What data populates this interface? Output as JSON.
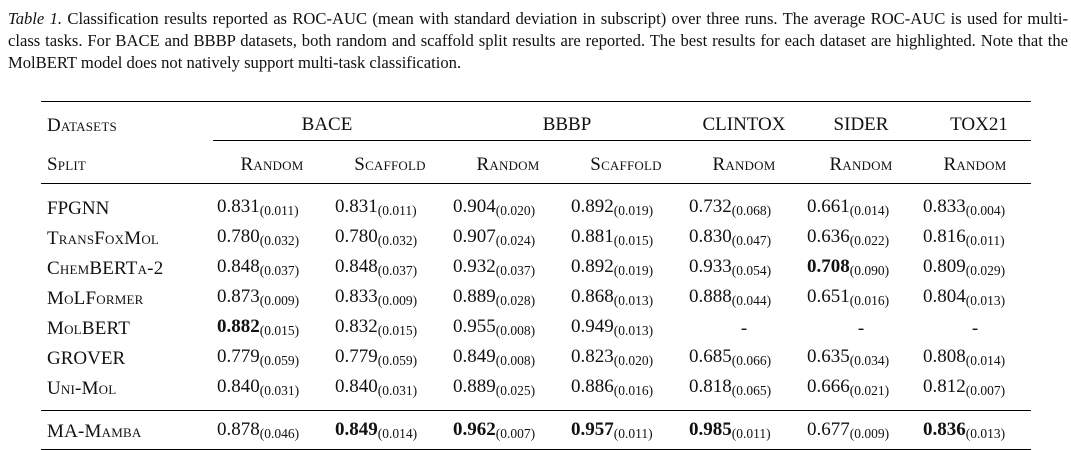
{
  "caption": {
    "label": "Table 1.",
    "text": " Classification results reported as ROC-AUC (mean with standard deviation in subscript) over three runs. The average ROC-AUC is used for multi-class tasks. For BACE and BBBP datasets, both random and scaffold split results are reported. The best results for each dataset are highlighted. Note that the MolBERT model does not natively support multi-task classification."
  },
  "header": {
    "datasets_label": "Datasets",
    "split_label": "Split",
    "groups": [
      "BACE",
      "BBBP",
      "CLINTOX",
      "SIDER",
      "TOX21"
    ],
    "splits": [
      "Random",
      "Scaffold",
      "Random",
      "Scaffold",
      "Random",
      "Random",
      "Random"
    ]
  },
  "rows": [
    {
      "model": "FPGNN",
      "cells": [
        {
          "m": "0.831",
          "s": "(0.011)"
        },
        {
          "m": "0.831",
          "s": "(0.011)"
        },
        {
          "m": "0.904",
          "s": "(0.020)"
        },
        {
          "m": "0.892",
          "s": "(0.019)"
        },
        {
          "m": "0.732",
          "s": "(0.068)"
        },
        {
          "m": "0.661",
          "s": "(0.014)"
        },
        {
          "m": "0.833",
          "s": "(0.004)"
        }
      ]
    },
    {
      "model": "TransFoxMol",
      "cells": [
        {
          "m": "0.780",
          "s": "(0.032)"
        },
        {
          "m": "0.780",
          "s": "(0.032)"
        },
        {
          "m": "0.907",
          "s": "(0.024)"
        },
        {
          "m": "0.881",
          "s": "(0.015)"
        },
        {
          "m": "0.830",
          "s": "(0.047)"
        },
        {
          "m": "0.636",
          "s": "(0.022)"
        },
        {
          "m": "0.816",
          "s": "(0.011)"
        }
      ]
    },
    {
      "model": "ChemBERTa-2",
      "cells": [
        {
          "m": "0.848",
          "s": "(0.037)"
        },
        {
          "m": "0.848",
          "s": "(0.037)"
        },
        {
          "m": "0.932",
          "s": "(0.037)"
        },
        {
          "m": "0.892",
          "s": "(0.019)"
        },
        {
          "m": "0.933",
          "s": "(0.054)"
        },
        {
          "m": "0.708",
          "s": "(0.090)",
          "bold": true
        },
        {
          "m": "0.809",
          "s": "(0.029)"
        }
      ]
    },
    {
      "model": "MoLFormer",
      "cells": [
        {
          "m": "0.873",
          "s": "(0.009)"
        },
        {
          "m": "0.833",
          "s": "(0.009)"
        },
        {
          "m": "0.889",
          "s": "(0.028)"
        },
        {
          "m": "0.868",
          "s": "(0.013)"
        },
        {
          "m": "0.888",
          "s": "(0.044)"
        },
        {
          "m": "0.651",
          "s": "(0.016)"
        },
        {
          "m": "0.804",
          "s": "(0.013)"
        }
      ]
    },
    {
      "model": "MolBERT",
      "cells": [
        {
          "m": "0.882",
          "s": "(0.015)",
          "bold": true
        },
        {
          "m": "0.832",
          "s": "(0.015)"
        },
        {
          "m": "0.955",
          "s": "(0.008)"
        },
        {
          "m": "0.949",
          "s": "(0.013)"
        },
        {
          "dash": "-"
        },
        {
          "dash": "-"
        },
        {
          "dash": "-"
        }
      ]
    },
    {
      "model": "GROVER",
      "cells": [
        {
          "m": "0.779",
          "s": "(0.059)"
        },
        {
          "m": "0.779",
          "s": "(0.059)"
        },
        {
          "m": "0.849",
          "s": "(0.008)"
        },
        {
          "m": "0.823",
          "s": "(0.020)"
        },
        {
          "m": "0.685",
          "s": "(0.066)"
        },
        {
          "m": "0.635",
          "s": "(0.034)"
        },
        {
          "m": "0.808",
          "s": "(0.014)"
        }
      ]
    },
    {
      "model": "Uni-Mol",
      "cells": [
        {
          "m": "0.840",
          "s": "(0.031)"
        },
        {
          "m": "0.840",
          "s": "(0.031)"
        },
        {
          "m": "0.889",
          "s": "(0.025)"
        },
        {
          "m": "0.886",
          "s": "(0.016)"
        },
        {
          "m": "0.818",
          "s": "(0.065)"
        },
        {
          "m": "0.666",
          "s": "(0.021)"
        },
        {
          "m": "0.812",
          "s": "(0.007)"
        }
      ]
    }
  ],
  "ours": {
    "model": "MA-Mamba",
    "cells": [
      {
        "m": "0.878",
        "s": "(0.046)"
      },
      {
        "m": "0.849",
        "s": "(0.014)",
        "bold": true
      },
      {
        "m": "0.962",
        "s": "(0.007)",
        "bold": true
      },
      {
        "m": "0.957",
        "s": "(0.011)",
        "bold": true
      },
      {
        "m": "0.985",
        "s": "(0.011)",
        "bold": true
      },
      {
        "m": "0.677",
        "s": "(0.009)"
      },
      {
        "m": "0.836",
        "s": "(0.013)",
        "bold": true
      }
    ]
  }
}
